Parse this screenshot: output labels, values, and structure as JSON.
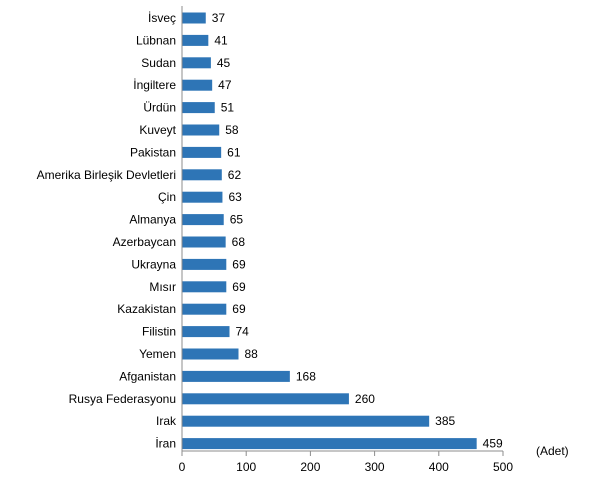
{
  "chart_data": {
    "type": "bar",
    "orientation": "horizontal",
    "categories": [
      "İsveç",
      "Lübnan",
      "Sudan",
      "İngiltere",
      "Ürdün",
      "Kuveyt",
      "Pakistan",
      "Amerika Birleşik Devletleri",
      "Çin",
      "Almanya",
      "Azerbaycan",
      "Ukrayna",
      "Mısır",
      "Kazakistan",
      "Filistin",
      "Yemen",
      "Afganistan",
      "Rusya Federasyonu",
      "Irak",
      "İran"
    ],
    "values": [
      37,
      41,
      45,
      47,
      51,
      58,
      61,
      62,
      63,
      65,
      68,
      69,
      69,
      69,
      74,
      88,
      168,
      260,
      385,
      459
    ],
    "xlim": [
      0,
      500
    ],
    "xticks": [
      "0",
      "100",
      "200",
      "300",
      "400",
      "500"
    ],
    "unit": "(Adet)",
    "title": "",
    "xlabel": "",
    "ylabel": "",
    "grid": false,
    "bar_color": "#2E75B6"
  }
}
